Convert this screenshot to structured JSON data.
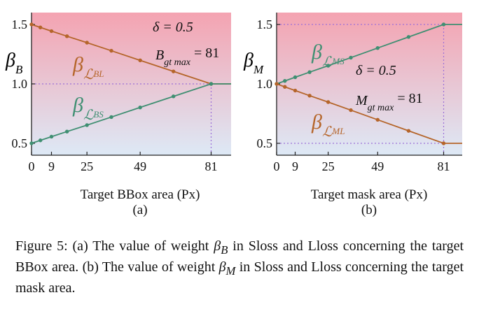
{
  "chart_data": [
    {
      "type": "line",
      "panel_label": "(a)",
      "xlabel": "Target BBox area (Px)",
      "ylabel": "β",
      "ylabel_sub": "B",
      "x_ticks": [
        0,
        9,
        25,
        49,
        81
      ],
      "y_ticks": [
        0.5,
        1.0,
        1.5
      ],
      "y_tick_labels": [
        "0.5",
        "1.0",
        "1.5"
      ],
      "xlim": [
        0,
        90
      ],
      "ylim": [
        0.4,
        1.6
      ],
      "annotations": {
        "delta": "δ = 0.5",
        "gtmax_main": "B",
        "gtmax_sub": "gt max",
        "gtmax_value": " = 81"
      },
      "series": [
        {
          "name": "β",
          "name_sub": "ℒ",
          "name_subsub": "BL",
          "color": "#b5652a",
          "x": [
            0,
            4,
            9,
            16,
            25,
            36,
            49,
            64,
            81,
            90
          ],
          "y": [
            1.5,
            1.475,
            1.444,
            1.401,
            1.347,
            1.279,
            1.198,
            1.105,
            1.0,
            1.0
          ]
        },
        {
          "name": "β",
          "name_sub": "ℒ",
          "name_subsub": "BS",
          "color": "#3f8f72",
          "x": [
            0,
            4,
            9,
            16,
            25,
            36,
            49,
            64,
            81,
            90
          ],
          "y": [
            0.5,
            0.525,
            0.556,
            0.599,
            0.653,
            0.721,
            0.802,
            0.895,
            1.0,
            1.0
          ]
        }
      ],
      "gridlines": {
        "y": [
          1.0
        ],
        "x": [
          81
        ]
      }
    },
    {
      "type": "line",
      "panel_label": "(b)",
      "xlabel": "Target mask area (Px)",
      "ylabel": "β",
      "ylabel_sub": "M",
      "x_ticks": [
        0,
        9,
        25,
        49,
        81
      ],
      "y_ticks": [
        0.5,
        1.0,
        1.5
      ],
      "y_tick_labels": [
        "0.5",
        "1.0",
        "1.5"
      ],
      "xlim": [
        0,
        90
      ],
      "ylim": [
        0.4,
        1.6
      ],
      "annotations": {
        "delta": "δ = 0.5",
        "gtmax_main": "M",
        "gtmax_sub": "gt max",
        "gtmax_value": " = 81"
      },
      "series": [
        {
          "name": "β",
          "name_sub": "ℒ",
          "name_subsub": "MS",
          "color": "#3f8f72",
          "x": [
            0,
            4,
            9,
            16,
            25,
            36,
            49,
            64,
            81,
            90
          ],
          "y": [
            1.0,
            1.025,
            1.056,
            1.099,
            1.153,
            1.221,
            1.302,
            1.395,
            1.5,
            1.5
          ]
        },
        {
          "name": "β",
          "name_sub": "ℒ",
          "name_subsub": "ML",
          "color": "#b5652a",
          "x": [
            0,
            4,
            9,
            16,
            25,
            36,
            49,
            64,
            81,
            90
          ],
          "y": [
            1.0,
            0.975,
            0.944,
            0.901,
            0.847,
            0.779,
            0.698,
            0.605,
            0.5,
            0.5
          ]
        }
      ],
      "gridlines": {
        "y": [
          0.5,
          1.5
        ],
        "x": [
          81
        ]
      }
    }
  ],
  "caption": {
    "fig": "Figure 5: (a) The value of weight ",
    "sym1": "β",
    "sym1_sub": "B",
    "mid1": " in Sloss and Lloss concerning the target BBox area. (b) The value of weight ",
    "sym2": "β",
    "sym2_sub": "M",
    "mid2": " in Sloss and Lloss concerning the target mask area."
  },
  "colors": {
    "bg_top": "#f4a3b1",
    "bg_bottom": "#dde9f6",
    "grid": "#9b6fd8",
    "axis": "#222222"
  }
}
